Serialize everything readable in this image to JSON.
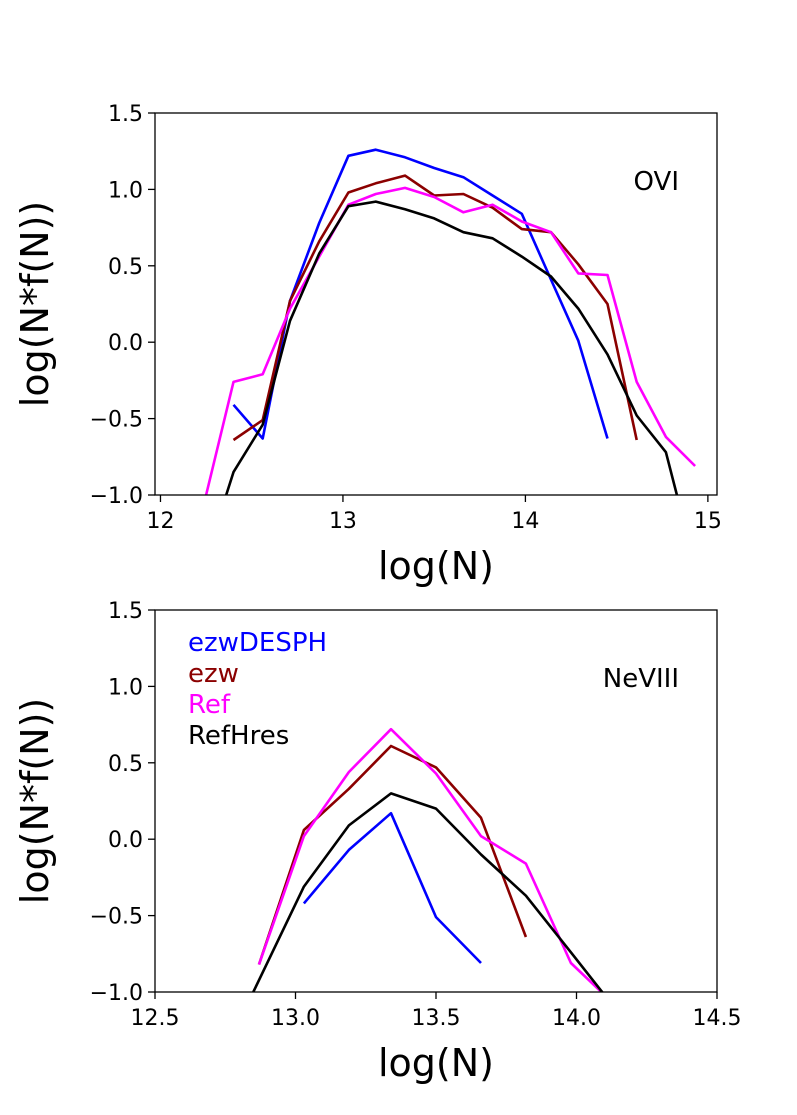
{
  "chart_data": [
    {
      "type": "line",
      "annotation": "OVI",
      "xlabel": "log(N)",
      "ylabel": "log(N*f(N))",
      "xlim": [
        11.97,
        15.05
      ],
      "ylim": [
        -1.0,
        1.5
      ],
      "xticks": [
        12,
        13,
        14,
        15
      ],
      "xtick_labels": [
        "12",
        "13",
        "14",
        "15"
      ],
      "yticks": [
        -1.0,
        -0.5,
        0.0,
        0.5,
        1.0,
        1.5
      ],
      "ytick_labels": [
        "−1.0",
        "−0.5",
        "0.0",
        "0.5",
        "1.0",
        "1.5"
      ],
      "grid": false,
      "series": [
        {
          "color": "#0000ff",
          "x": [
            12.4,
            12.56,
            12.71,
            12.87,
            13.03,
            13.18,
            13.34,
            13.5,
            13.66,
            13.82,
            13.98,
            14.14,
            14.29,
            14.45
          ],
          "y": [
            -0.41,
            -0.63,
            0.27,
            0.78,
            1.22,
            1.26,
            1.21,
            1.14,
            1.08,
            0.96,
            0.84,
            0.41,
            0.01,
            -0.63
          ]
        },
        {
          "color": "#8b0000",
          "x": [
            12.4,
            12.56,
            12.71,
            12.87,
            13.03,
            13.18,
            13.34,
            13.5,
            13.66,
            13.82,
            13.98,
            14.14,
            14.29,
            14.45,
            14.61
          ],
          "y": [
            -0.64,
            -0.51,
            0.27,
            0.66,
            0.98,
            1.04,
            1.09,
            0.96,
            0.97,
            0.88,
            0.74,
            0.72,
            0.51,
            0.25,
            -0.64
          ]
        },
        {
          "color": "#ff00ff",
          "x": [
            12.25,
            12.4,
            12.56,
            12.71,
            12.87,
            13.03,
            13.18,
            13.34,
            13.5,
            13.66,
            13.82,
            13.98,
            14.14,
            14.29,
            14.45,
            14.61,
            14.77,
            14.93
          ],
          "y": [
            -1.0,
            -0.26,
            -0.21,
            0.22,
            0.56,
            0.9,
            0.97,
            1.01,
            0.95,
            0.85,
            0.9,
            0.79,
            0.72,
            0.45,
            0.44,
            -0.26,
            -0.62,
            -0.81
          ]
        },
        {
          "color": "#000000",
          "x": [
            12.36,
            12.4,
            12.56,
            12.71,
            12.87,
            13.03,
            13.18,
            13.34,
            13.5,
            13.66,
            13.82,
            13.98,
            14.14,
            14.29,
            14.45,
            14.61,
            14.77,
            14.83
          ],
          "y": [
            -1.0,
            -0.85,
            -0.54,
            0.14,
            0.58,
            0.89,
            0.92,
            0.87,
            0.81,
            0.72,
            0.68,
            0.56,
            0.43,
            0.22,
            -0.08,
            -0.48,
            -0.72,
            -1.0
          ]
        }
      ]
    },
    {
      "type": "line",
      "annotation": "NeVIII",
      "xlabel": "log(N)",
      "ylabel": "log(N*f(N))",
      "xlim": [
        12.5,
        14.5
      ],
      "ylim": [
        -1.0,
        1.5
      ],
      "xticks": [
        12.5,
        13.0,
        13.5,
        14.0,
        14.5
      ],
      "xtick_labels": [
        "12.5",
        "13.0",
        "13.5",
        "14.0",
        "14.5"
      ],
      "yticks": [
        -1.0,
        -0.5,
        0.0,
        0.5,
        1.0,
        1.5
      ],
      "ytick_labels": [
        "−1.0",
        "−0.5",
        "0.0",
        "0.5",
        "1.0",
        "1.5"
      ],
      "grid": false,
      "legend": {
        "placement": "top-left",
        "entries": [
          "ezwDESPH",
          "ezw",
          "Ref",
          "RefHres"
        ]
      },
      "series": [
        {
          "name": "ezwDESPH",
          "color": "#0000ff",
          "x": [
            13.03,
            13.19,
            13.34,
            13.5,
            13.66
          ],
          "y": [
            -0.42,
            -0.07,
            0.17,
            -0.51,
            -0.81
          ]
        },
        {
          "name": "ezw",
          "color": "#8b0000",
          "x": [
            12.87,
            13.03,
            13.19,
            13.34,
            13.5,
            13.66,
            13.82
          ],
          "y": [
            -0.82,
            0.06,
            0.33,
            0.61,
            0.47,
            0.14,
            -0.64
          ]
        },
        {
          "name": "Ref",
          "color": "#ff00ff",
          "x": [
            12.87,
            13.03,
            13.19,
            13.34,
            13.5,
            13.66,
            13.82,
            13.98,
            14.1
          ],
          "y": [
            -0.82,
            0.02,
            0.44,
            0.72,
            0.43,
            0.02,
            -0.16,
            -0.81,
            -1.02
          ]
        },
        {
          "name": "RefHres",
          "color": "#000000",
          "x": [
            12.85,
            13.03,
            13.19,
            13.34,
            13.5,
            13.66,
            13.82,
            13.98,
            14.1
          ],
          "y": [
            -1.0,
            -0.31,
            0.09,
            0.3,
            0.2,
            -0.1,
            -0.37,
            -0.74,
            -1.02
          ]
        }
      ]
    }
  ]
}
